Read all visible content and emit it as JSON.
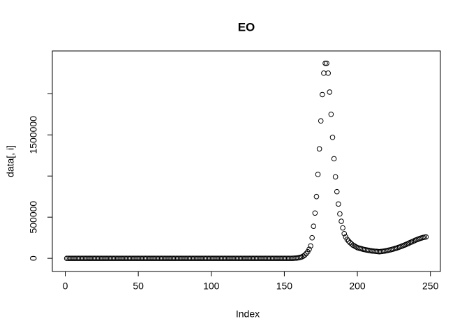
{
  "chart_data": {
    "type": "scatter",
    "title": "EO",
    "x_label": "Index",
    "y_label": "data[, i]",
    "x": [
      1,
      2,
      3,
      4,
      5,
      6,
      7,
      8,
      9,
      10,
      11,
      12,
      13,
      14,
      15,
      16,
      17,
      18,
      19,
      20,
      21,
      22,
      23,
      24,
      25,
      26,
      27,
      28,
      29,
      30,
      31,
      32,
      33,
      34,
      35,
      36,
      37,
      38,
      39,
      40,
      41,
      42,
      43,
      44,
      45,
      46,
      47,
      48,
      49,
      50,
      51,
      52,
      53,
      54,
      55,
      56,
      57,
      58,
      59,
      60,
      61,
      62,
      63,
      64,
      65,
      66,
      67,
      68,
      69,
      70,
      71,
      72,
      73,
      74,
      75,
      76,
      77,
      78,
      79,
      80,
      81,
      82,
      83,
      84,
      85,
      86,
      87,
      88,
      89,
      90,
      91,
      92,
      93,
      94,
      95,
      96,
      97,
      98,
      99,
      100,
      101,
      102,
      103,
      104,
      105,
      106,
      107,
      108,
      109,
      110,
      111,
      112,
      113,
      114,
      115,
      116,
      117,
      118,
      119,
      120,
      121,
      122,
      123,
      124,
      125,
      126,
      127,
      128,
      129,
      130,
      131,
      132,
      133,
      134,
      135,
      136,
      137,
      138,
      139,
      140,
      141,
      142,
      143,
      144,
      145,
      146,
      147,
      148,
      149,
      150,
      151,
      152,
      153,
      154,
      155,
      156,
      157,
      158,
      159,
      160,
      161,
      162,
      163,
      164,
      165,
      166,
      167,
      168,
      169,
      170,
      171,
      172,
      173,
      174,
      175,
      176,
      177,
      178,
      179,
      180,
      181,
      182,
      183,
      184,
      185,
      186,
      187,
      188,
      189,
      190,
      191,
      192,
      193,
      194,
      195,
      196,
      197,
      198,
      199,
      200,
      201,
      202,
      203,
      204,
      205,
      206,
      207,
      208,
      209,
      210,
      211,
      212,
      213,
      214,
      215,
      216,
      217,
      218,
      219,
      220,
      221,
      222,
      223,
      224,
      225,
      226,
      227,
      228,
      229,
      230,
      231,
      232,
      233,
      234,
      235,
      236,
      237,
      238,
      239,
      240,
      241,
      242,
      243,
      244,
      245,
      246,
      247
    ],
    "values": [
      0,
      0,
      0,
      0,
      0,
      0,
      0,
      0,
      0,
      0,
      0,
      0,
      0,
      0,
      0,
      0,
      0,
      0,
      0,
      0,
      0,
      0,
      0,
      0,
      0,
      0,
      0,
      0,
      0,
      0,
      0,
      0,
      0,
      0,
      0,
      0,
      0,
      0,
      0,
      0,
      0,
      0,
      0,
      0,
      0,
      0,
      0,
      0,
      0,
      0,
      0,
      0,
      0,
      0,
      0,
      0,
      0,
      0,
      0,
      0,
      0,
      0,
      0,
      0,
      0,
      0,
      0,
      0,
      0,
      0,
      0,
      0,
      0,
      0,
      0,
      0,
      0,
      0,
      0,
      0,
      0,
      0,
      0,
      0,
      0,
      0,
      0,
      0,
      0,
      0,
      0,
      0,
      0,
      0,
      0,
      0,
      0,
      0,
      0,
      0,
      0,
      0,
      0,
      0,
      0,
      0,
      0,
      0,
      0,
      0,
      0,
      0,
      0,
      0,
      0,
      0,
      0,
      0,
      0,
      0,
      0,
      0,
      0,
      0,
      0,
      0,
      0,
      0,
      0,
      0,
      0,
      0,
      0,
      0,
      0,
      0,
      0,
      0,
      0,
      0,
      0,
      0,
      0,
      0,
      0,
      0,
      0,
      0,
      0,
      0,
      0,
      0,
      0,
      0,
      0,
      1000,
      2000,
      3000,
      5000,
      8000,
      12000,
      18000,
      27000,
      40000,
      58000,
      80000,
      110000,
      150000,
      250000,
      390000,
      550000,
      750000,
      1020000,
      1330000,
      1670000,
      1990000,
      2250000,
      2370000,
      2370000,
      2250000,
      2020000,
      1750000,
      1470000,
      1210000,
      990000,
      810000,
      660000,
      540000,
      450000,
      370000,
      300000,
      260000,
      230000,
      210000,
      190000,
      175000,
      160000,
      150000,
      140000,
      130000,
      125000,
      120000,
      115000,
      110000,
      106000,
      102000,
      99000,
      96000,
      93000,
      90000,
      88000,
      86000,
      84000,
      82000,
      80000,
      82000,
      84000,
      87000,
      90000,
      93000,
      97000,
      101000,
      105000,
      110000,
      115000,
      120000,
      126000,
      132000,
      138000,
      145000,
      152000,
      159000,
      166000,
      174000,
      182000,
      190000,
      198000,
      206000,
      214000,
      222000,
      229000,
      236000,
      242000,
      248000,
      253000,
      257000,
      260000
    ],
    "marker_color": "#000000",
    "xlim": [
      -8.84,
      256.84
    ],
    "xticks": [
      0,
      50,
      100,
      150,
      200,
      250
    ],
    "ylim": [
      -160000,
      2520000
    ],
    "yticks": [
      0,
      500000,
      {
        "value": 1000000,
        "label": null
      },
      1500000,
      {
        "value": 2000000,
        "label": null
      }
    ]
  }
}
